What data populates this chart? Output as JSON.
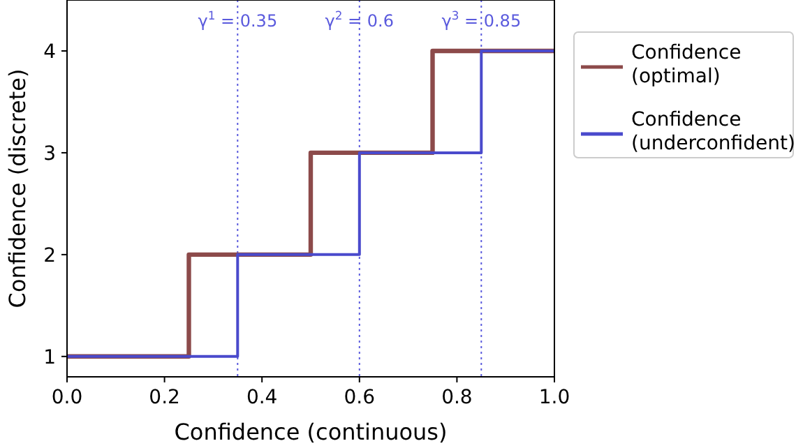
{
  "chart_data": {
    "type": "step",
    "xlabel": "Confidence (continuous)",
    "ylabel": "Confidence (discrete)",
    "xlim": [
      0,
      1
    ],
    "xticks": [
      {
        "value": 0,
        "label": "0.0"
      },
      {
        "value": 0.2,
        "label": "0.2"
      },
      {
        "value": 0.4,
        "label": "0.4"
      },
      {
        "value": 0.6,
        "label": "0.6"
      },
      {
        "value": 0.8,
        "label": "0.8"
      },
      {
        "value": 1,
        "label": "1.0"
      }
    ],
    "ylim": [
      0.8,
      4.5
    ],
    "yticks": [
      1,
      2,
      3,
      4
    ],
    "series": [
      {
        "name": "Confidence\n(optimal)",
        "color": "#8c4a4a",
        "x": [
          0,
          0.25,
          0.5,
          0.75,
          1
        ],
        "values": [
          1,
          2,
          3,
          4,
          4
        ]
      },
      {
        "name": "Confidence\n(underconfident)",
        "color": "#4a4acc",
        "x": [
          0,
          0.35,
          0.6,
          0.85,
          1
        ],
        "values": [
          1,
          2,
          3,
          4,
          4
        ]
      }
    ],
    "ref_lines": [
      {
        "axis": "x",
        "value": 0.35,
        "label": "γ$^{1}$ = 0.35",
        "color": "#5a5add",
        "line_style": "dotted"
      },
      {
        "axis": "x",
        "value": 0.6,
        "label": "γ$^{2}$ = 0.6",
        "color": "#5a5add",
        "line_style": "dotted"
      },
      {
        "axis": "x",
        "value": 0.85,
        "label": "γ$^{3}$ = 0.85",
        "color": "#5a5add",
        "line_style": "dotted"
      }
    ],
    "legend": "right",
    "grid": false,
    "line_style": "solid",
    "marker": "none"
  }
}
